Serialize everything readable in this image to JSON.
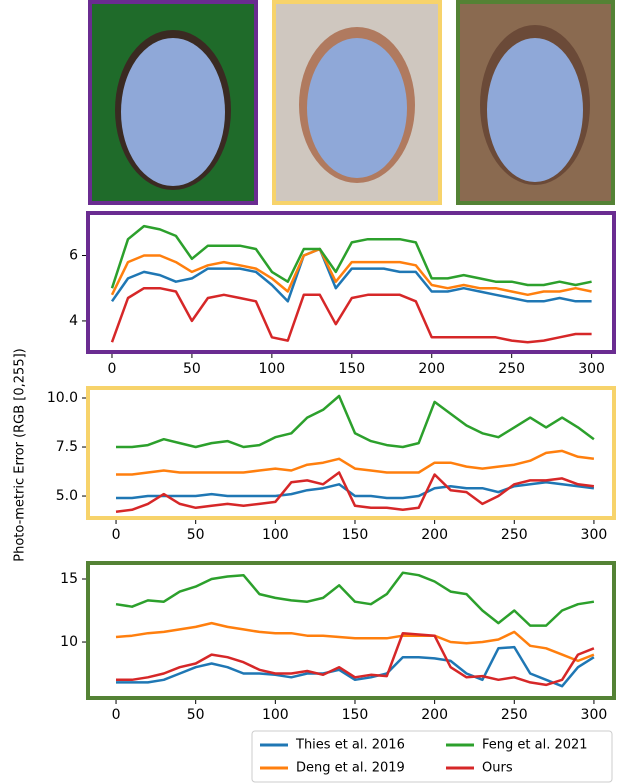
{
  "chart_data": [
    {
      "type": "line",
      "border_color": "#6a2c91",
      "x": [
        0,
        10,
        20,
        30,
        40,
        50,
        60,
        70,
        80,
        90,
        100,
        110,
        120,
        130,
        140,
        150,
        160,
        170,
        180,
        190,
        200,
        210,
        220,
        230,
        240,
        250,
        260,
        270,
        280,
        290,
        300
      ],
      "xlim": [
        -15,
        314
      ],
      "xticks": [
        0,
        50,
        100,
        150,
        200,
        250,
        300
      ],
      "ylim": [
        3.05,
        7.3
      ],
      "yticks": [
        4,
        6
      ],
      "series": [
        {
          "name": "Thies et al. 2016",
          "color": "#1f77b4",
          "values": [
            4.6,
            5.3,
            5.5,
            5.4,
            5.2,
            5.3,
            5.6,
            5.6,
            5.6,
            5.5,
            5.1,
            4.6,
            6.0,
            6.2,
            5.0,
            5.6,
            5.6,
            5.6,
            5.5,
            5.5,
            4.9,
            4.9,
            5.0,
            4.9,
            4.8,
            4.7,
            4.6,
            4.6,
            4.7,
            4.6,
            4.6
          ]
        },
        {
          "name": "Deng et al. 2019",
          "color": "#ff7f0e",
          "values": [
            4.8,
            5.8,
            6.0,
            6.0,
            5.8,
            5.5,
            5.7,
            5.8,
            5.7,
            5.6,
            5.3,
            4.9,
            6.0,
            6.2,
            5.2,
            5.8,
            5.8,
            5.8,
            5.8,
            5.7,
            5.1,
            5.0,
            5.1,
            5.0,
            5.0,
            4.9,
            4.8,
            4.9,
            4.9,
            5.0,
            4.9
          ]
        },
        {
          "name": "Feng et al. 2021",
          "color": "#2ca02c",
          "values": [
            5.0,
            6.5,
            6.9,
            6.8,
            6.6,
            5.9,
            6.3,
            6.3,
            6.3,
            6.2,
            5.5,
            5.2,
            6.2,
            6.2,
            5.5,
            6.4,
            6.5,
            6.5,
            6.5,
            6.4,
            5.3,
            5.3,
            5.4,
            5.3,
            5.2,
            5.2,
            5.1,
            5.1,
            5.2,
            5.1,
            5.2
          ]
        },
        {
          "name": "Ours",
          "color": "#d62728",
          "values": [
            3.35,
            4.7,
            5.0,
            5.0,
            4.9,
            4.0,
            4.7,
            4.8,
            4.7,
            4.6,
            3.5,
            3.4,
            4.8,
            4.8,
            3.9,
            4.7,
            4.8,
            4.8,
            4.8,
            4.6,
            3.5,
            3.5,
            3.5,
            3.5,
            3.5,
            3.4,
            3.35,
            3.4,
            3.5,
            3.6,
            3.6
          ]
        }
      ]
    },
    {
      "type": "line",
      "border_color": "#f7d36b",
      "ylabel": "Photo-metric Error  (RGB [0,255])",
      "x": [
        0,
        10,
        20,
        30,
        40,
        50,
        60,
        70,
        80,
        90,
        100,
        110,
        120,
        130,
        140,
        150,
        160,
        170,
        180,
        190,
        200,
        210,
        220,
        230,
        240,
        250,
        260,
        270,
        280,
        290,
        300
      ],
      "xlim": [
        -17.6,
        312.6
      ],
      "xticks": [
        0,
        50,
        100,
        150,
        200,
        250,
        300
      ],
      "ylim": [
        3.88,
        10.51
      ],
      "yticks": [
        {
          "value": 5,
          "label": "5.0"
        },
        7.5,
        {
          "value": 10,
          "label": "10.0"
        }
      ],
      "series": [
        {
          "color": "#1f77b4",
          "values": [
            4.9,
            4.9,
            5.0,
            5.0,
            5.0,
            5.0,
            5.1,
            5.0,
            5.0,
            5.0,
            5.0,
            5.1,
            5.3,
            5.4,
            5.6,
            5.0,
            5.0,
            4.9,
            4.9,
            5.0,
            5.4,
            5.5,
            5.4,
            5.4,
            5.2,
            5.5,
            5.6,
            5.7,
            5.6,
            5.5,
            5.4
          ]
        },
        {
          "color": "#ff7f0e",
          "values": [
            6.1,
            6.1,
            6.2,
            6.3,
            6.2,
            6.2,
            6.2,
            6.2,
            6.2,
            6.3,
            6.4,
            6.3,
            6.6,
            6.7,
            6.9,
            6.4,
            6.3,
            6.2,
            6.2,
            6.2,
            6.7,
            6.7,
            6.5,
            6.4,
            6.5,
            6.6,
            6.8,
            7.2,
            7.3,
            7.0,
            6.9
          ]
        },
        {
          "color": "#2ca02c",
          "values": [
            7.5,
            7.5,
            7.6,
            7.9,
            7.7,
            7.5,
            7.7,
            7.8,
            7.5,
            7.6,
            8.0,
            8.2,
            9.0,
            9.4,
            10.1,
            8.2,
            7.8,
            7.6,
            7.5,
            7.7,
            9.8,
            9.2,
            8.6,
            8.2,
            8.0,
            8.5,
            9.0,
            8.5,
            9.0,
            8.5,
            7.9
          ]
        },
        {
          "color": "#d62728",
          "values": [
            4.2,
            4.3,
            4.6,
            5.1,
            4.6,
            4.4,
            4.5,
            4.6,
            4.5,
            4.6,
            4.7,
            5.7,
            5.8,
            5.6,
            6.2,
            4.5,
            4.4,
            4.4,
            4.3,
            4.4,
            6.1,
            5.3,
            5.2,
            4.6,
            5.0,
            5.6,
            5.8,
            5.8,
            5.9,
            5.6,
            5.5
          ]
        }
      ]
    },
    {
      "type": "line",
      "border_color": "#548235",
      "x": [
        0,
        10,
        20,
        30,
        40,
        50,
        60,
        70,
        80,
        90,
        100,
        110,
        120,
        130,
        140,
        150,
        160,
        170,
        180,
        190,
        200,
        210,
        220,
        230,
        240,
        250,
        260,
        270,
        280,
        290,
        300
      ],
      "xlim": [
        -17.6,
        312.6
      ],
      "xticks": [
        0,
        50,
        100,
        150,
        200,
        250,
        300
      ],
      "ylim": [
        5.56,
        16.27
      ],
      "yticks": [
        10,
        15
      ],
      "series": [
        {
          "color": "#1f77b4",
          "values": [
            6.8,
            6.8,
            6.8,
            7.0,
            7.5,
            8.0,
            8.3,
            8.0,
            7.5,
            7.5,
            7.4,
            7.2,
            7.5,
            7.5,
            7.8,
            7.0,
            7.2,
            7.5,
            8.8,
            8.8,
            8.7,
            8.5,
            7.5,
            7.0,
            9.5,
            9.6,
            7.5,
            7.0,
            6.5,
            8.0,
            8.8
          ]
        },
        {
          "color": "#ff7f0e",
          "values": [
            10.4,
            10.5,
            10.7,
            10.8,
            11.0,
            11.2,
            11.5,
            11.2,
            11.0,
            10.8,
            10.7,
            10.7,
            10.5,
            10.5,
            10.4,
            10.3,
            10.3,
            10.3,
            10.5,
            10.5,
            10.5,
            10.0,
            9.9,
            10.0,
            10.2,
            10.8,
            9.7,
            9.5,
            9.0,
            8.5,
            9.0
          ]
        },
        {
          "color": "#2ca02c",
          "values": [
            13.0,
            12.8,
            13.3,
            13.2,
            14.0,
            14.4,
            15.0,
            15.2,
            15.3,
            13.8,
            13.5,
            13.3,
            13.2,
            13.5,
            14.5,
            13.2,
            13.0,
            13.8,
            15.5,
            15.3,
            14.8,
            14.0,
            13.8,
            12.5,
            11.5,
            12.5,
            11.3,
            11.3,
            12.5,
            13.0,
            13.2
          ]
        },
        {
          "color": "#d62728",
          "values": [
            7.0,
            7.0,
            7.2,
            7.5,
            8.0,
            8.3,
            9.0,
            8.8,
            8.4,
            7.8,
            7.5,
            7.5,
            7.7,
            7.4,
            8.0,
            7.2,
            7.4,
            7.3,
            10.7,
            10.6,
            10.5,
            8.0,
            7.2,
            7.3,
            7.0,
            7.2,
            6.8,
            6.6,
            7.0,
            9.0,
            9.5
          ]
        }
      ]
    }
  ]
}
